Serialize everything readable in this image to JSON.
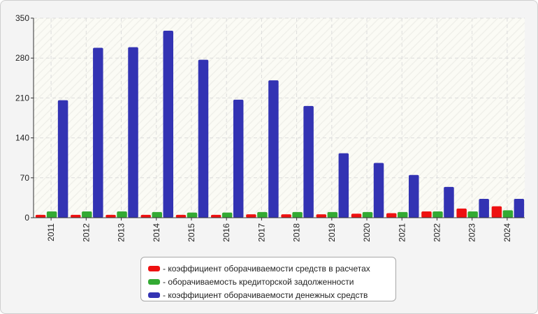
{
  "colors": {
    "background": "#f4f4f4",
    "plot_area": "#fbfbf5",
    "gridline": "#dcdcdc",
    "axis": "#333333"
  },
  "chart_data": {
    "type": "bar",
    "categories": [
      "2011",
      "2012",
      "2013",
      "2014",
      "2015",
      "2016",
      "2017",
      "2018",
      "2019",
      "2020",
      "2021",
      "2022",
      "2023",
      "2024"
    ],
    "series": [
      {
        "name": "- коэффициент оборачиваемости средств в расчетах",
        "color": "#ee1111",
        "values": [
          5,
          5,
          5,
          5,
          5,
          5,
          6,
          6,
          6,
          7,
          8,
          11,
          16,
          20
        ]
      },
      {
        "name": "- оборачиваемость кредиторской задолженности",
        "color": "#33aa33",
        "values": [
          11,
          11,
          11,
          10,
          9,
          9,
          10,
          10,
          10,
          10,
          10,
          11,
          11,
          13
        ]
      },
      {
        "name": "- коэффициент оборачиваемости денежных средств",
        "color": "#3333b3",
        "values": [
          206,
          298,
          299,
          328,
          277,
          207,
          241,
          196,
          113,
          96,
          75,
          54,
          33,
          33
        ]
      }
    ],
    "yticks": [
      0,
      70,
      140,
      210,
      280,
      350
    ],
    "ylim": [
      0,
      350
    ],
    "grid": true,
    "legend_position": "bottom"
  }
}
